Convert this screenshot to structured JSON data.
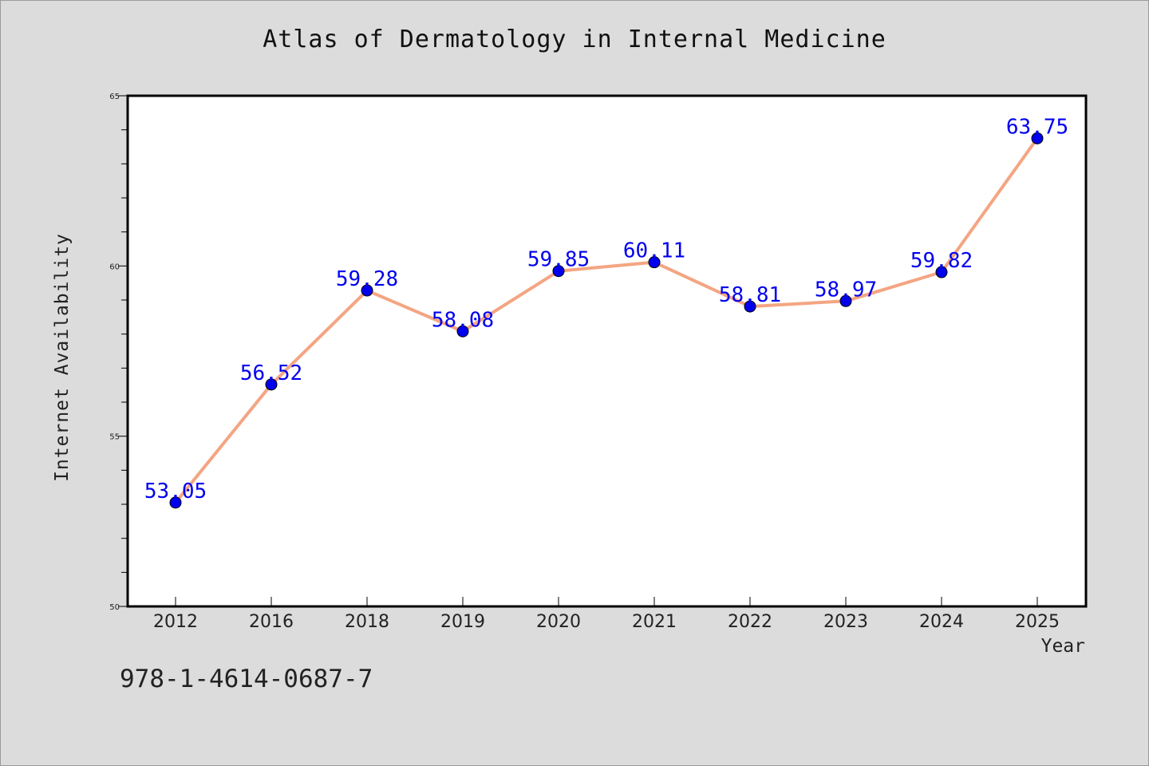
{
  "chart_data": {
    "type": "line",
    "title": "Atlas of Dermatology in Internal Medicine",
    "xlabel": "Year",
    "ylabel": "Internet Availability",
    "categories": [
      "2012",
      "2016",
      "2018",
      "2019",
      "2020",
      "2021",
      "2022",
      "2023",
      "2024",
      "2025"
    ],
    "series": [
      {
        "values": [
          53.05,
          56.52,
          59.28,
          58.08,
          59.85,
          60.11,
          58.81,
          58.97,
          59.82,
          63.75
        ],
        "value_labels": [
          "53.05",
          "56.52",
          "59.28",
          "58.08",
          "59.85",
          "60.11",
          "58.81",
          "58.97",
          "59.82",
          "63.75"
        ],
        "line_color": "#f4a582",
        "marker_color": "#0000ee"
      }
    ],
    "ylim": [
      50,
      65
    ],
    "yticks": [
      50,
      55,
      60,
      65
    ],
    "ytick_labels": [
      "50",
      "55",
      "60",
      "65"
    ],
    "grid": false,
    "annotation": "978-1-4614-0687-7"
  },
  "colors": {
    "background": "#dcdcdc",
    "plot_background": "#ffffff",
    "line": "#f4a582",
    "marker": "#0000ee",
    "value_label": "#0000ee"
  }
}
